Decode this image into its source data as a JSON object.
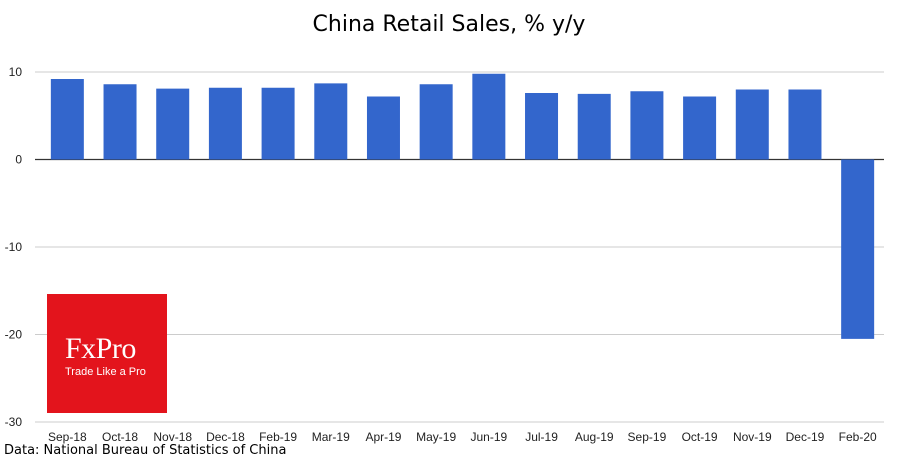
{
  "chart_data": {
    "type": "bar",
    "title": "China Retail Sales, % y/y",
    "categories": [
      "Sep-18",
      "Oct-18",
      "Nov-18",
      "Dec-18",
      "Feb-19",
      "Mar-19",
      "Apr-19",
      "May-19",
      "Jun-19",
      "Jul-19",
      "Aug-19",
      "Sep-19",
      "Oct-19",
      "Nov-19",
      "Dec-19",
      "Feb-20"
    ],
    "values": [
      9.2,
      8.6,
      8.1,
      8.2,
      8.2,
      8.7,
      7.2,
      8.6,
      9.8,
      7.6,
      7.5,
      7.8,
      7.2,
      8.0,
      8.0,
      -20.5
    ],
    "ylim": [
      -30,
      10
    ],
    "yticks": [
      10,
      0,
      -10,
      -20,
      -30
    ],
    "ytick_labels": [
      "10",
      "0",
      "-10",
      "-20",
      "-30"
    ],
    "grid": true,
    "bar_color": "#3366cc",
    "xlabel": "",
    "ylabel": ""
  },
  "source_note": "Data: National Bureau of Statistics of China",
  "logo": {
    "name": "FxPro",
    "tagline": "Trade Like a Pro",
    "color": "#e3141c"
  }
}
